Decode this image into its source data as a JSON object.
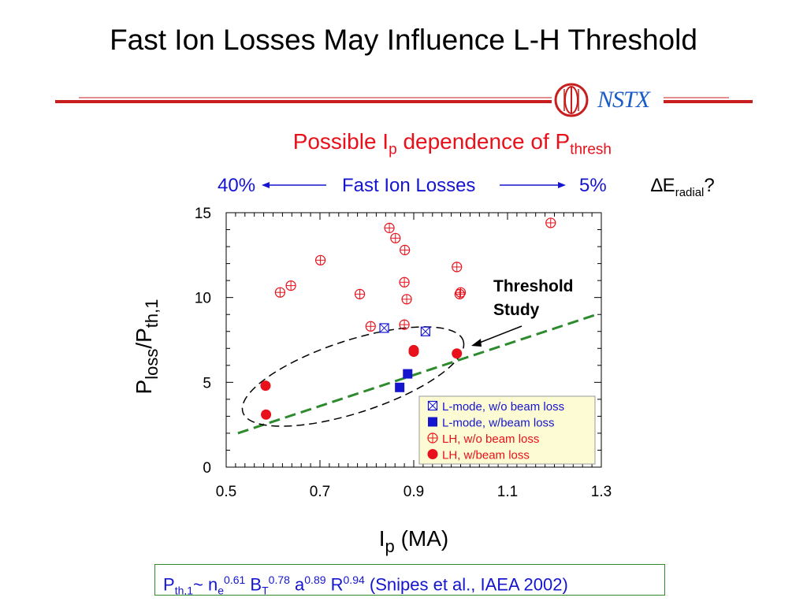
{
  "slide": {
    "title": "Fast Ion Losses May Influence L-H Threshold",
    "logo_text": "NSTX",
    "subtitle_main": "Possible I",
    "subtitle_sub1": "p",
    "subtitle_mid": " dependence of P",
    "subtitle_sub2": "thresh",
    "fast_ion_left": "40%",
    "fast_ion_center": "Fast Ion Losses",
    "fast_ion_right": "5%",
    "eradial_symbol": "∆E",
    "eradial_sub": "radial",
    "eradial_q": "?",
    "formula": {
      "p": "P",
      "p_sub": "th,1",
      "tilde_n": "~ n",
      "n_sub": "e",
      "n_sup": "0.61",
      "b": " B",
      "b_sub": "T",
      "b_sup": "0.78",
      "a": " a",
      "a_sup": "0.89",
      "r": " R",
      "r_sup": "0.94",
      "cite": " (Snipes et al., IAEA 2002)"
    },
    "colors": {
      "red": "#e8101a",
      "blue": "#1515d0",
      "green": "#2d8a2d",
      "header_rule": "#c81e1e"
    }
  },
  "chart_data": {
    "type": "scatter",
    "xlabel_main": "I",
    "xlabel_sub": "p",
    "xlabel_unit": " (MA)",
    "ylabel_main": "P",
    "ylabel_sub1": "loss",
    "ylabel_mid": "/P",
    "ylabel_sub2": "th,1",
    "xlim": [
      0.5,
      1.3
    ],
    "ylim": [
      0,
      15
    ],
    "xticks": [
      "0.5",
      "0.7",
      "0.9",
      "1.1",
      "1.3"
    ],
    "yticks": [
      "0",
      "5",
      "10",
      "15"
    ],
    "grid": false,
    "legend_position": "bottom-right",
    "annotation": "Threshold\nStudy",
    "series": [
      {
        "name": "L-mode, w/o beam loss",
        "marker": "boxed-x",
        "color": "#1515d0",
        "points": [
          [
            0.837,
            8.2
          ],
          [
            0.925,
            8.0
          ]
        ]
      },
      {
        "name": "L-mode, w/beam loss",
        "marker": "filled-square",
        "color": "#1515d0",
        "points": [
          [
            0.87,
            4.7
          ],
          [
            0.887,
            5.5
          ]
        ]
      },
      {
        "name": "LH, w/o beam loss",
        "marker": "circle-plus",
        "color": "#e8101a",
        "points": [
          [
            0.615,
            10.3
          ],
          [
            0.638,
            10.7
          ],
          [
            0.701,
            12.2
          ],
          [
            0.785,
            10.2
          ],
          [
            0.808,
            8.3
          ],
          [
            0.848,
            14.1
          ],
          [
            0.861,
            13.5
          ],
          [
            0.881,
            12.8
          ],
          [
            0.88,
            10.9
          ],
          [
            0.885,
            9.9
          ],
          [
            0.88,
            8.4
          ],
          [
            0.992,
            11.8
          ],
          [
            0.998,
            10.2
          ],
          [
            1.0,
            10.3
          ],
          [
            1.192,
            14.4
          ]
        ]
      },
      {
        "name": "LH, w/beam loss",
        "marker": "filled-circle",
        "color": "#e8101a",
        "points": [
          [
            0.584,
            4.8
          ],
          [
            0.585,
            3.1
          ],
          [
            0.9,
            6.9
          ],
          [
            0.9,
            6.8
          ],
          [
            0.992,
            6.7
          ]
        ]
      }
    ],
    "fit_line": {
      "style": "dashed",
      "color": "#2d8a2d",
      "points": [
        [
          0.525,
          2.0
        ],
        [
          1.29,
          9.0
        ]
      ]
    }
  }
}
